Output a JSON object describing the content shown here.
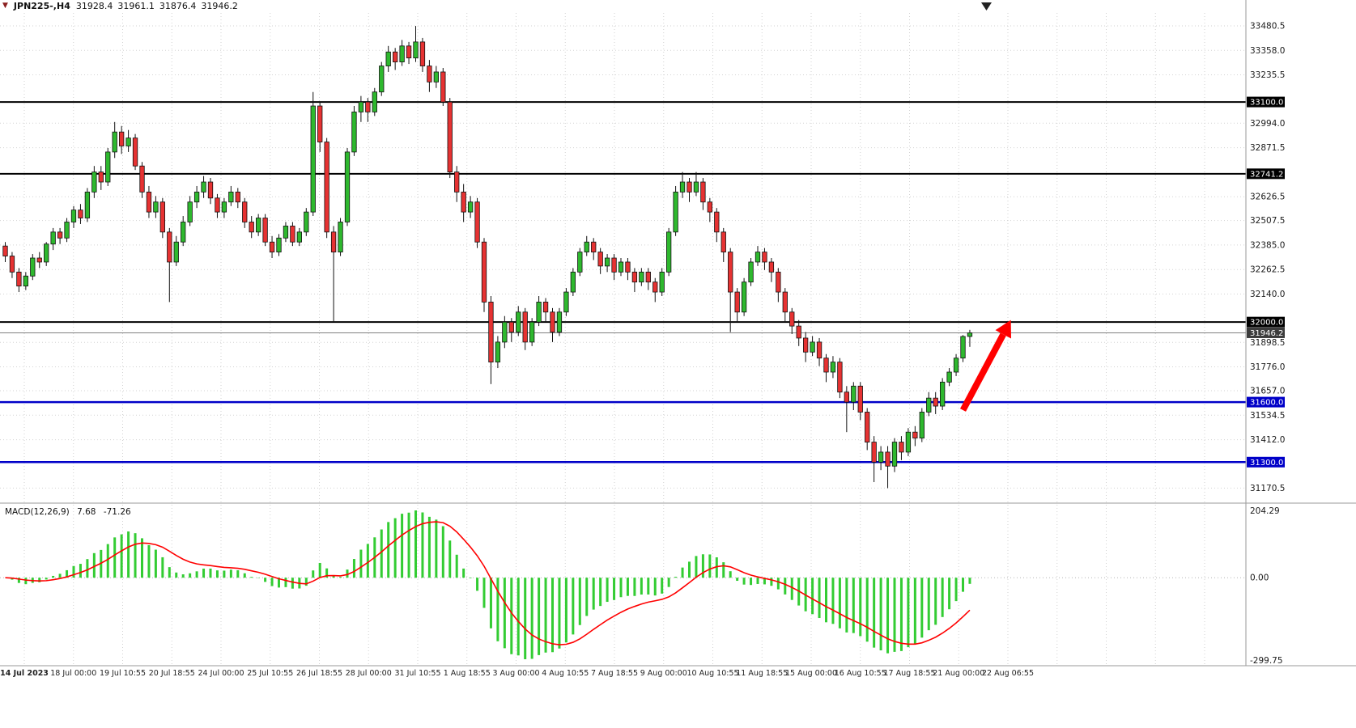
{
  "header": {
    "symbol_period": "JPN225-,H4",
    "open": "31928.4",
    "high": "31961.1",
    "low": "31876.4",
    "close": "31946.2"
  },
  "macd_panel": {
    "label": "MACD(12,26,9)",
    "main_value": "7.68",
    "signal_value": "-71.26"
  },
  "colors": {
    "bull": "#2eb82e",
    "bear": "#e63232",
    "wick": "#111111",
    "grid": "#d2d2d2",
    "level_black": "#000000",
    "level_blue": "#0000c8",
    "current_price_line": "#808080",
    "current_price_box": "#3c3c3c",
    "macd_histogram": "#33cc33",
    "macd_signal": "#ff0000",
    "arrow": "#ff0000",
    "axis_text": "#1a1a1a",
    "frame": "#9a9a9a"
  },
  "chart_data": [
    {
      "type": "candlestick",
      "title": "JPN225-,H4",
      "timeframe": "H4",
      "y_range": [
        31095,
        33545
      ],
      "y_ticks": [
        33480.5,
        33358.0,
        33235.5,
        32994.0,
        32871.5,
        32626.5,
        32507.5,
        32385.0,
        32262.5,
        32140.0,
        31898.5,
        31776.0,
        31657.0,
        31534.5,
        31412.0,
        31170.5
      ],
      "levels": [
        {
          "value": 33100.0,
          "label": "33100.0",
          "color": "black"
        },
        {
          "value": 32741.2,
          "label": "32741.2",
          "color": "black"
        },
        {
          "value": 32000.0,
          "label": "32000.0",
          "color": "black"
        },
        {
          "value": 31600.0,
          "label": "31600.0",
          "color": "blue"
        },
        {
          "value": 31300.0,
          "label": "31300.0",
          "color": "blue"
        }
      ],
      "current_price": {
        "value": 31946.2,
        "label": "31946.2"
      },
      "x_labels": [
        "14 Jul 2023",
        "18 Jul 00:00",
        "19 Jul 10:55",
        "20 Jul 18:55",
        "24 Jul 00:00",
        "25 Jul 10:55",
        "26 Jul 18:55",
        "28 Jul 00:00",
        "31 Jul 10:55",
        "1 Aug 18:55",
        "3 Aug 00:00",
        "4 Aug 10:55",
        "7 Aug 18:55",
        "9 Aug 00:00",
        "10 Aug 10:55",
        "11 Aug 18:55",
        "15 Aug 00:00",
        "16 Aug 10:55",
        "17 Aug 18:55",
        "21 Aug 00:00",
        "22 Aug 06:55"
      ],
      "candles": [
        [
          32380,
          32400,
          32300,
          32330
        ],
        [
          32330,
          32350,
          32220,
          32250
        ],
        [
          32250,
          32270,
          32150,
          32180
        ],
        [
          32180,
          32250,
          32160,
          32230
        ],
        [
          32230,
          32340,
          32210,
          32320
        ],
        [
          32320,
          32350,
          32270,
          32300
        ],
        [
          32300,
          32400,
          32280,
          32390
        ],
        [
          32390,
          32470,
          32360,
          32450
        ],
        [
          32450,
          32470,
          32390,
          32420
        ],
        [
          32420,
          32520,
          32400,
          32500
        ],
        [
          32500,
          32580,
          32470,
          32560
        ],
        [
          32560,
          32590,
          32490,
          32520
        ],
        [
          32520,
          32670,
          32500,
          32650
        ],
        [
          32650,
          32780,
          32620,
          32750
        ],
        [
          32750,
          32780,
          32660,
          32700
        ],
        [
          32700,
          32870,
          32680,
          32850
        ],
        [
          32850,
          33000,
          32820,
          32950
        ],
        [
          32950,
          32980,
          32840,
          32880
        ],
        [
          32880,
          32960,
          32850,
          32920
        ],
        [
          32920,
          32940,
          32760,
          32780
        ],
        [
          32780,
          32800,
          32620,
          32650
        ],
        [
          32650,
          32680,
          32520,
          32550
        ],
        [
          32550,
          32630,
          32520,
          32600
        ],
        [
          32600,
          32620,
          32420,
          32450
        ],
        [
          32450,
          32470,
          32100,
          32300
        ],
        [
          32300,
          32430,
          32280,
          32400
        ],
        [
          32400,
          32530,
          32380,
          32500
        ],
        [
          32500,
          32630,
          32480,
          32600
        ],
        [
          32600,
          32680,
          32570,
          32650
        ],
        [
          32650,
          32730,
          32620,
          32700
        ],
        [
          32700,
          32720,
          32590,
          32620
        ],
        [
          32620,
          32640,
          32520,
          32550
        ],
        [
          32550,
          32620,
          32520,
          32600
        ],
        [
          32600,
          32680,
          32580,
          32650
        ],
        [
          32650,
          32670,
          32570,
          32600
        ],
        [
          32600,
          32620,
          32470,
          32500
        ],
        [
          32500,
          32530,
          32420,
          32450
        ],
        [
          32450,
          32540,
          32430,
          32520
        ],
        [
          32520,
          32540,
          32380,
          32400
        ],
        [
          32400,
          32430,
          32320,
          32350
        ],
        [
          32350,
          32440,
          32330,
          32420
        ],
        [
          32420,
          32500,
          32400,
          32480
        ],
        [
          32480,
          32500,
          32380,
          32400
        ],
        [
          32400,
          32470,
          32380,
          32450
        ],
        [
          32450,
          32570,
          32430,
          32550
        ],
        [
          32550,
          33150,
          32530,
          33080
        ],
        [
          33080,
          33100,
          32850,
          32900
        ],
        [
          32900,
          32920,
          32420,
          32450
        ],
        [
          32450,
          32480,
          32000,
          32350
        ],
        [
          32350,
          32520,
          32330,
          32500
        ],
        [
          32500,
          32870,
          32480,
          32850
        ],
        [
          32850,
          33080,
          32830,
          33050
        ],
        [
          33050,
          33130,
          33000,
          33100
        ],
        [
          33100,
          33120,
          33000,
          33050
        ],
        [
          33050,
          33170,
          33030,
          33150
        ],
        [
          33150,
          33300,
          33130,
          33280
        ],
        [
          33280,
          33380,
          33250,
          33350
        ],
        [
          33350,
          33370,
          33260,
          33300
        ],
        [
          33300,
          33410,
          33280,
          33380
        ],
        [
          33380,
          33400,
          33290,
          33320
        ],
        [
          33320,
          33480,
          33300,
          33400
        ],
        [
          33400,
          33420,
          33250,
          33280
        ],
        [
          33280,
          33310,
          33150,
          33200
        ],
        [
          33200,
          33280,
          33170,
          33250
        ],
        [
          33250,
          33270,
          33080,
          33100
        ],
        [
          33100,
          33120,
          32720,
          32750
        ],
        [
          32750,
          32780,
          32600,
          32650
        ],
        [
          32650,
          32690,
          32500,
          32550
        ],
        [
          32550,
          32630,
          32520,
          32600
        ],
        [
          32600,
          32620,
          32370,
          32400
        ],
        [
          32400,
          32420,
          32050,
          32100
        ],
        [
          32100,
          32130,
          31690,
          31800
        ],
        [
          31800,
          31930,
          31770,
          31900
        ],
        [
          31900,
          32030,
          31870,
          32000
        ],
        [
          32000,
          32020,
          31900,
          31950
        ],
        [
          31950,
          32080,
          31930,
          32050
        ],
        [
          32050,
          32070,
          31860,
          31900
        ],
        [
          31900,
          32020,
          31880,
          32000
        ],
        [
          32000,
          32130,
          31980,
          32100
        ],
        [
          32100,
          32120,
          32000,
          32050
        ],
        [
          32050,
          32070,
          31900,
          31950
        ],
        [
          31950,
          32070,
          31930,
          32050
        ],
        [
          32050,
          32170,
          32030,
          32150
        ],
        [
          32150,
          32270,
          32130,
          32250
        ],
        [
          32250,
          32370,
          32230,
          32350
        ],
        [
          32350,
          32430,
          32330,
          32400
        ],
        [
          32400,
          32420,
          32310,
          32350
        ],
        [
          32350,
          32370,
          32240,
          32280
        ],
        [
          32280,
          32340,
          32250,
          32320
        ],
        [
          32320,
          32340,
          32210,
          32250
        ],
        [
          32250,
          32320,
          32230,
          32300
        ],
        [
          32300,
          32320,
          32210,
          32250
        ],
        [
          32250,
          32270,
          32150,
          32200
        ],
        [
          32200,
          32270,
          32180,
          32250
        ],
        [
          32250,
          32270,
          32160,
          32200
        ],
        [
          32200,
          32220,
          32100,
          32150
        ],
        [
          32150,
          32270,
          32130,
          32250
        ],
        [
          32250,
          32470,
          32230,
          32450
        ],
        [
          32450,
          32680,
          32430,
          32650
        ],
        [
          32650,
          32750,
          32620,
          32700
        ],
        [
          32700,
          32720,
          32600,
          32650
        ],
        [
          32650,
          32750,
          32630,
          32700
        ],
        [
          32700,
          32720,
          32560,
          32600
        ],
        [
          32600,
          32620,
          32500,
          32550
        ],
        [
          32550,
          32570,
          32400,
          32450
        ],
        [
          32450,
          32470,
          32300,
          32350
        ],
        [
          32350,
          32370,
          31950,
          32150
        ],
        [
          32150,
          32170,
          32000,
          32050
        ],
        [
          32050,
          32220,
          32030,
          32200
        ],
        [
          32200,
          32320,
          32180,
          32300
        ],
        [
          32300,
          32380,
          32280,
          32350
        ],
        [
          32350,
          32370,
          32260,
          32300
        ],
        [
          32300,
          32320,
          32200,
          32250
        ],
        [
          32250,
          32270,
          32100,
          32150
        ],
        [
          32150,
          32170,
          32000,
          32050
        ],
        [
          32050,
          32070,
          31940,
          31980
        ],
        [
          31980,
          32010,
          31880,
          31920
        ],
        [
          31920,
          31950,
          31800,
          31850
        ],
        [
          31850,
          31930,
          31830,
          31900
        ],
        [
          31900,
          31920,
          31780,
          31820
        ],
        [
          31820,
          31840,
          31700,
          31750
        ],
        [
          31750,
          31830,
          31720,
          31800
        ],
        [
          31800,
          31820,
          31620,
          31650
        ],
        [
          31650,
          31680,
          31450,
          31600
        ],
        [
          31600,
          31700,
          31560,
          31680
        ],
        [
          31680,
          31700,
          31510,
          31550
        ],
        [
          31550,
          31570,
          31360,
          31400
        ],
        [
          31400,
          31430,
          31200,
          31300
        ],
        [
          31300,
          31380,
          31260,
          31350
        ],
        [
          31350,
          31380,
          31170,
          31280
        ],
        [
          31280,
          31420,
          31250,
          31400
        ],
        [
          31400,
          31430,
          31310,
          31350
        ],
        [
          31350,
          31470,
          31330,
          31450
        ],
        [
          31450,
          31480,
          31380,
          31420
        ],
        [
          31420,
          31570,
          31400,
          31550
        ],
        [
          31550,
          31650,
          31530,
          31620
        ],
        [
          31620,
          31650,
          31540,
          31580
        ],
        [
          31580,
          31720,
          31560,
          31700
        ],
        [
          31700,
          31770,
          31680,
          31750
        ],
        [
          31750,
          31840,
          31730,
          31820
        ],
        [
          31820,
          31935,
          31800,
          31928
        ],
        [
          31928,
          31961,
          31876,
          31946
        ]
      ],
      "arrow_annotation": {
        "from_bar": 140,
        "from_price": 31560,
        "to_bar": 147,
        "to_price": 32010,
        "color": "#ff0000"
      }
    },
    {
      "type": "macd",
      "label": "MACD(12,26,9)",
      "params": {
        "fast": 12,
        "slow": 26,
        "signal": 9
      },
      "current_main": 7.68,
      "current_signal": -71.26,
      "axis_labels": [
        "204.29",
        "0.00",
        "-299.75"
      ],
      "y_max": 204.29,
      "y_min": -299.75
    }
  ]
}
